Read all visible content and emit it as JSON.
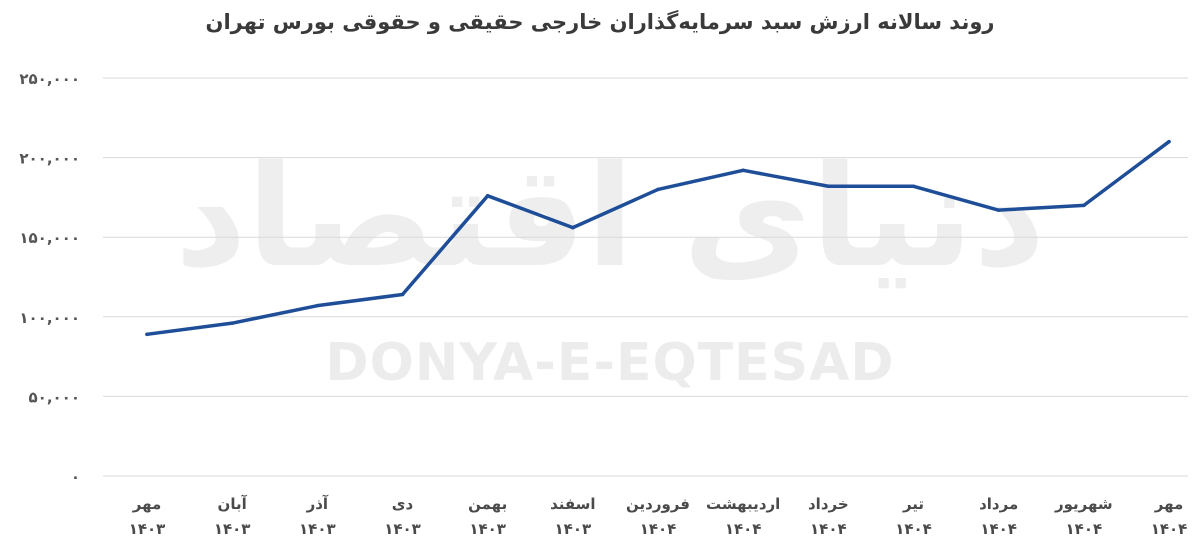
{
  "chart_data": {
    "type": "line",
    "title": "روند سالانه ارزش سبد سرمایه‌گذاران خارجی حقیقی و حقوقی بورس تهران",
    "xlabel": "",
    "ylabel": "",
    "categories": [
      {
        "month": "مهر",
        "year": "۱۴۰۳"
      },
      {
        "month": "آبان",
        "year": "۱۴۰۳"
      },
      {
        "month": "آذر",
        "year": "۱۴۰۳"
      },
      {
        "month": "دی",
        "year": "۱۴۰۳"
      },
      {
        "month": "بهمن",
        "year": "۱۴۰۳"
      },
      {
        "month": "اسفند",
        "year": "۱۴۰۳"
      },
      {
        "month": "فروردین",
        "year": "۱۴۰۴"
      },
      {
        "month": "اردیبهشت",
        "year": "۱۴۰۴"
      },
      {
        "month": "خرداد",
        "year": "۱۴۰۴"
      },
      {
        "month": "تیر",
        "year": "۱۴۰۴"
      },
      {
        "month": "مرداد",
        "year": "۱۴۰۴"
      },
      {
        "month": "شهریور",
        "year": "۱۴۰۴"
      },
      {
        "month": "مهر",
        "year": "۱۴۰۴"
      }
    ],
    "series": [
      {
        "values": [
          89000,
          96000,
          107000,
          114000,
          176000,
          156000,
          180000,
          192000,
          182000,
          182000,
          167000,
          170000,
          210000
        ]
      }
    ],
    "ylim": [
      0,
      250000
    ],
    "yticks": [
      0,
      50000,
      100000,
      150000,
      200000,
      250000
    ],
    "ytick_labels": [
      "۰",
      "۵۰,۰۰۰",
      "۱۰۰,۰۰۰",
      "۱۵۰,۰۰۰",
      "۲۰۰,۰۰۰",
      "۲۵۰,۰۰۰"
    ],
    "grid": true,
    "legend": "none",
    "line_color": "#1f4e99",
    "grid_color": "#d9d9d9"
  },
  "watermark": {
    "text": "DONYA-E-EQTESAD",
    "logo": "دنیای اقتصاد"
  }
}
